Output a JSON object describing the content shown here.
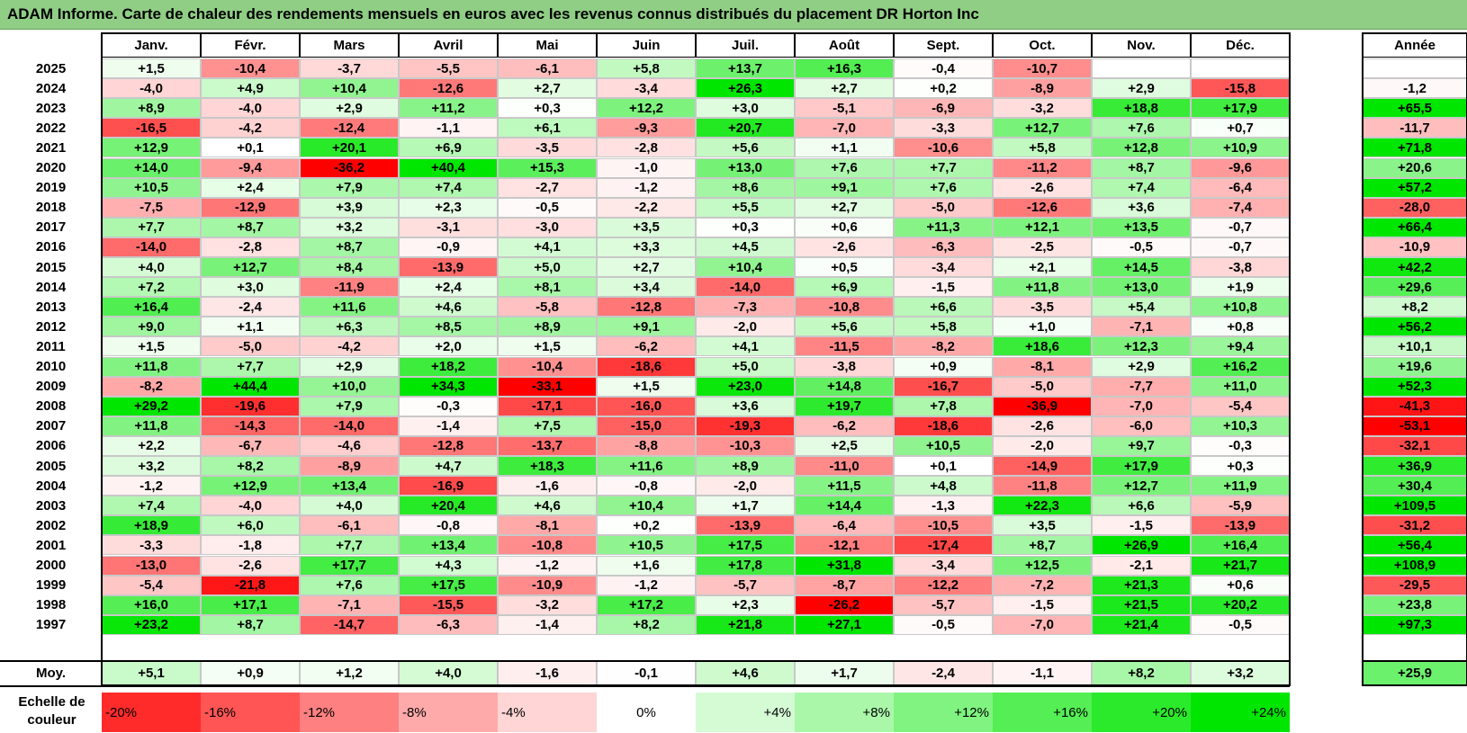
{
  "title": "ADAM Informe. Carte de chaleur des rendements mensuels en euros avec les revenus connus distribués du placement DR Horton Inc",
  "chart_data": {
    "type": "heatmap",
    "columns": [
      "Janv.",
      "Févr.",
      "Mars",
      "Avril",
      "Mai",
      "Juin",
      "Juil.",
      "Août",
      "Sept.",
      "Oct.",
      "Nov.",
      "Déc."
    ],
    "year_column_label": "Année",
    "rows": [
      {
        "year": "2025",
        "months": [
          "+1,5",
          "-10,4",
          "-3,7",
          "-5,5",
          "-6,1",
          "+5,8",
          "+13,7",
          "+16,3",
          "-0,4",
          "-10,7",
          "",
          ""
        ],
        "annual": ""
      },
      {
        "year": "2024",
        "months": [
          "-4,0",
          "+4,9",
          "+10,4",
          "-12,6",
          "+2,7",
          "-3,4",
          "+26,3",
          "+2,7",
          "+0,2",
          "-8,9",
          "+2,9",
          "-15,8"
        ],
        "annual": "-1,2"
      },
      {
        "year": "2023",
        "months": [
          "+8,9",
          "-4,0",
          "+2,9",
          "+11,2",
          "+0,3",
          "+12,2",
          "+3,0",
          "-5,1",
          "-6,9",
          "-3,2",
          "+18,8",
          "+17,9"
        ],
        "annual": "+65,5"
      },
      {
        "year": "2022",
        "months": [
          "-16,5",
          "-4,2",
          "-12,4",
          "-1,1",
          "+6,1",
          "-9,3",
          "+20,7",
          "-7,0",
          "-3,3",
          "+12,7",
          "+7,6",
          "+0,7"
        ],
        "annual": "-11,7"
      },
      {
        "year": "2021",
        "months": [
          "+12,9",
          "+0,1",
          "+20,1",
          "+6,9",
          "-3,5",
          "-2,8",
          "+5,6",
          "+1,1",
          "-10,6",
          "+5,8",
          "+12,8",
          "+10,9"
        ],
        "annual": "+71,8"
      },
      {
        "year": "2020",
        "months": [
          "+14,0",
          "-9,4",
          "-36,2",
          "+40,4",
          "+15,3",
          "-1,0",
          "+13,0",
          "+7,6",
          "+7,7",
          "-11,2",
          "+8,7",
          "-9,6"
        ],
        "annual": "+20,6"
      },
      {
        "year": "2019",
        "months": [
          "+10,5",
          "+2,4",
          "+7,9",
          "+7,4",
          "-2,7",
          "-1,2",
          "+8,6",
          "+9,1",
          "+7,6",
          "-2,6",
          "+7,4",
          "-6,4"
        ],
        "annual": "+57,2"
      },
      {
        "year": "2018",
        "months": [
          "-7,5",
          "-12,9",
          "+3,9",
          "+2,3",
          "-0,5",
          "-2,2",
          "+5,5",
          "+2,7",
          "-5,0",
          "-12,6",
          "+3,6",
          "-7,4"
        ],
        "annual": "-28,0"
      },
      {
        "year": "2017",
        "months": [
          "+7,7",
          "+8,7",
          "+3,2",
          "-3,1",
          "-3,0",
          "+3,5",
          "+0,3",
          "+0,6",
          "+11,3",
          "+12,1",
          "+13,5",
          "-0,7"
        ],
        "annual": "+66,4"
      },
      {
        "year": "2016",
        "months": [
          "-14,0",
          "-2,8",
          "+8,7",
          "-0,9",
          "+4,1",
          "+3,3",
          "+4,5",
          "-2,6",
          "-6,3",
          "-2,5",
          "-0,5",
          "-0,7"
        ],
        "annual": "-10,9"
      },
      {
        "year": "2015",
        "months": [
          "+4,0",
          "+12,7",
          "+8,4",
          "-13,9",
          "+5,0",
          "+2,7",
          "+10,4",
          "+0,5",
          "-3,4",
          "+2,1",
          "+14,5",
          "-3,8"
        ],
        "annual": "+42,2"
      },
      {
        "year": "2014",
        "months": [
          "+7,2",
          "+3,0",
          "-11,9",
          "+2,4",
          "+8,1",
          "+3,4",
          "-14,0",
          "+6,9",
          "-1,5",
          "+11,8",
          "+13,0",
          "+1,9"
        ],
        "annual": "+29,6"
      },
      {
        "year": "2013",
        "months": [
          "+16,4",
          "-2,4",
          "+11,6",
          "+4,6",
          "-5,8",
          "-12,8",
          "-7,3",
          "-10,8",
          "+6,6",
          "-3,5",
          "+5,4",
          "+10,8"
        ],
        "annual": "+8,2"
      },
      {
        "year": "2012",
        "months": [
          "+9,0",
          "+1,1",
          "+6,3",
          "+8,5",
          "+8,9",
          "+9,1",
          "-2,0",
          "+5,6",
          "+5,8",
          "+1,0",
          "-7,1",
          "+0,8"
        ],
        "annual": "+56,2"
      },
      {
        "year": "2011",
        "months": [
          "+1,5",
          "-5,0",
          "-4,2",
          "+2,0",
          "+1,5",
          "-6,2",
          "+4,1",
          "-11,5",
          "-8,2",
          "+18,6",
          "+12,3",
          "+9,4"
        ],
        "annual": "+10,1"
      },
      {
        "year": "2010",
        "months": [
          "+11,8",
          "+7,7",
          "+2,9",
          "+18,2",
          "-10,4",
          "-18,6",
          "+5,0",
          "-3,8",
          "+0,9",
          "-8,1",
          "+2,9",
          "+16,2"
        ],
        "annual": "+19,6"
      },
      {
        "year": "2009",
        "months": [
          "-8,2",
          "+44,4",
          "+10,0",
          "+34,3",
          "-33,1",
          "+1,5",
          "+23,0",
          "+14,8",
          "-16,7",
          "-5,0",
          "-7,7",
          "+11,0"
        ],
        "annual": "+52,3"
      },
      {
        "year": "2008",
        "months": [
          "+29,2",
          "-19,6",
          "+7,9",
          "-0,3",
          "-17,1",
          "-16,0",
          "+3,6",
          "+19,7",
          "+7,8",
          "-36,9",
          "-7,0",
          "-5,4"
        ],
        "annual": "-41,3"
      },
      {
        "year": "2007",
        "months": [
          "+11,8",
          "-14,3",
          "-14,0",
          "-1,4",
          "+7,5",
          "-15,0",
          "-19,3",
          "-6,2",
          "-18,6",
          "-2,6",
          "-6,0",
          "+10,3"
        ],
        "annual": "-53,1"
      },
      {
        "year": "2006",
        "months": [
          "+2,2",
          "-6,7",
          "-4,6",
          "-12,8",
          "-13,7",
          "-8,8",
          "-10,3",
          "+2,5",
          "+10,5",
          "-2,0",
          "+9,7",
          "-0,3"
        ],
        "annual": "-32,1"
      },
      {
        "year": "2005",
        "months": [
          "+3,2",
          "+8,2",
          "-8,9",
          "+4,7",
          "+18,3",
          "+11,6",
          "+8,9",
          "-11,0",
          "+0,1",
          "-14,9",
          "+17,9",
          "+0,3"
        ],
        "annual": "+36,9"
      },
      {
        "year": "2004",
        "months": [
          "-1,2",
          "+12,9",
          "+13,4",
          "-16,9",
          "-1,6",
          "-0,8",
          "-2,0",
          "+11,5",
          "+4,8",
          "-11,8",
          "+12,7",
          "+11,9"
        ],
        "annual": "+30,4"
      },
      {
        "year": "2003",
        "months": [
          "+7,4",
          "-4,0",
          "+4,0",
          "+20,4",
          "+4,6",
          "+10,4",
          "+1,7",
          "+14,4",
          "-1,3",
          "+22,3",
          "+6,6",
          "-5,9"
        ],
        "annual": "+109,5"
      },
      {
        "year": "2002",
        "months": [
          "+18,9",
          "+6,0",
          "-6,1",
          "-0,8",
          "-8,1",
          "+0,2",
          "-13,9",
          "-6,4",
          "-10,5",
          "+3,5",
          "-1,5",
          "-13,9"
        ],
        "annual": "-31,2"
      },
      {
        "year": "2001",
        "months": [
          "-3,3",
          "-1,8",
          "+7,7",
          "+13,4",
          "-10,8",
          "+10,5",
          "+17,5",
          "-12,1",
          "-17,4",
          "+8,7",
          "+26,9",
          "+16,4"
        ],
        "annual": "+56,4"
      },
      {
        "year": "2000",
        "months": [
          "-13,0",
          "-2,6",
          "+17,7",
          "+4,3",
          "-1,2",
          "+1,6",
          "+17,8",
          "+31,8",
          "-3,4",
          "+12,5",
          "-2,1",
          "+21,7"
        ],
        "annual": "+108,9"
      },
      {
        "year": "1999",
        "months": [
          "-5,4",
          "-21,8",
          "+7,6",
          "+17,5",
          "-10,9",
          "-1,2",
          "-5,7",
          "-8,7",
          "-12,2",
          "-7,2",
          "+21,3",
          "+0,6"
        ],
        "annual": "-29,5"
      },
      {
        "year": "1998",
        "months": [
          "+16,0",
          "+17,1",
          "-7,1",
          "-15,5",
          "-3,2",
          "+17,2",
          "+2,3",
          "-26,2",
          "-5,7",
          "-1,5",
          "+21,5",
          "+20,2"
        ],
        "annual": "+23,8"
      },
      {
        "year": "1997",
        "months": [
          "+23,2",
          "+8,7",
          "-14,7",
          "-6,3",
          "-1,4",
          "+8,2",
          "+21,8",
          "+27,1",
          "-0,5",
          "-7,0",
          "+21,4",
          "-0,5"
        ],
        "annual": "+97,3"
      }
    ],
    "average": {
      "label": "Moy.",
      "months": [
        "+5,1",
        "+0,9",
        "+1,2",
        "+4,0",
        "-1,6",
        "-0,1",
        "+4,6",
        "+1,7",
        "-2,4",
        "-1,1",
        "+8,2",
        "+3,2"
      ],
      "annual": "+25,9"
    },
    "scale": {
      "label": "Echelle de couleur",
      "steps": [
        "-20%",
        "-16%",
        "-12%",
        "-8%",
        "-4%",
        "0%",
        "+4%",
        "+8%",
        "+12%",
        "+16%",
        "+20%",
        "+24%"
      ]
    },
    "colors": {
      "title_bar": "#8fce84",
      "negative_max": "#ff0000",
      "neutral": "#ffffff",
      "positive_max": "#00e600"
    }
  }
}
